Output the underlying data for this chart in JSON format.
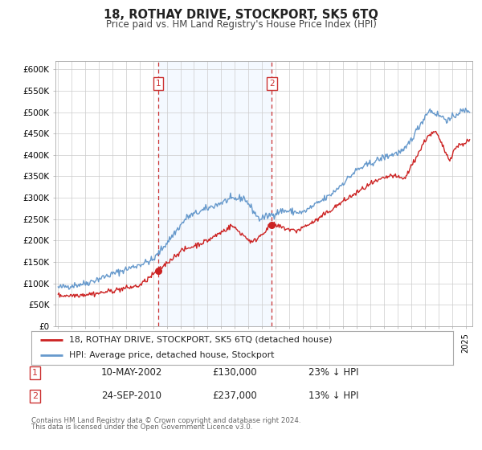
{
  "title": "18, ROTHAY DRIVE, STOCKPORT, SK5 6TQ",
  "subtitle": "Price paid vs. HM Land Registry's House Price Index (HPI)",
  "hpi_label": "HPI: Average price, detached house, Stockport",
  "property_label": "18, ROTHAY DRIVE, STOCKPORT, SK5 6TQ (detached house)",
  "transaction1": {
    "date": "10-MAY-2002",
    "price": 130000,
    "pct": "23%",
    "direction": "↓"
  },
  "transaction2": {
    "date": "24-SEP-2010",
    "price": 237000,
    "pct": "13%",
    "direction": "↓"
  },
  "footer1": "Contains HM Land Registry data © Crown copyright and database right 2024.",
  "footer2": "This data is licensed under the Open Government Licence v3.0.",
  "ylim": [
    0,
    620000
  ],
  "yticks": [
    0,
    50000,
    100000,
    150000,
    200000,
    250000,
    300000,
    350000,
    400000,
    450000,
    500000,
    550000,
    600000
  ],
  "ytick_labels": [
    "£0",
    "£50K",
    "£100K",
    "£150K",
    "£200K",
    "£250K",
    "£300K",
    "£350K",
    "£400K",
    "£450K",
    "£500K",
    "£550K",
    "£600K"
  ],
  "hpi_color": "#6699cc",
  "property_color": "#cc2222",
  "marker_color": "#cc2222",
  "vline_color": "#cc3333",
  "shade_color": "#ddeeff",
  "grid_color": "#cccccc",
  "background_color": "#ffffff",
  "transaction1_x": 2002.36,
  "transaction2_x": 2010.73,
  "transaction1_y": 130000,
  "transaction2_y": 237000,
  "xlim_left": 1994.8,
  "xlim_right": 2025.5
}
